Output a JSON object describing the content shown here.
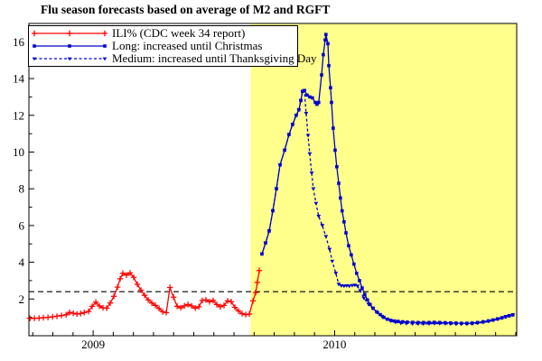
{
  "title": "Flu season forecasts based on average of M2 and RGFT",
  "legend": {
    "items": [
      {
        "label": "ILI% (CDC week 34 report)",
        "color": "#ff0000",
        "marker": "plus",
        "line": "solid"
      },
      {
        "label": "Long: increased until Christmas",
        "color": "#0000cc",
        "marker": "square",
        "line": "solid"
      },
      {
        "label": "Medium: increased until Thanksgiving Day",
        "color": "#0000cc",
        "marker": "triangle",
        "line": "dashed"
      }
    ]
  },
  "chart_data": {
    "type": "line",
    "title": "Flu season forecasts based on average of M2 and RGFT",
    "xlabel": "",
    "ylabel": "",
    "x_axis": {
      "range": [
        2008.734,
        2010.754
      ],
      "minor_tick_step_years": 0.08333,
      "year_labels": [
        {
          "value": 2009,
          "text": "2009"
        },
        {
          "value": 2010,
          "text": "2010"
        }
      ]
    },
    "y_axis": {
      "range": [
        0,
        17
      ],
      "major_ticks": [
        2,
        4,
        6,
        8,
        10,
        12,
        14,
        16
      ],
      "minor_ticks": [
        1,
        3,
        5,
        7,
        9,
        11,
        13,
        15,
        17
      ]
    },
    "grid": false,
    "legend_position": "top-left",
    "baseline": {
      "value": 2.4,
      "style": "dashed",
      "color": "#000000"
    },
    "forecast_region": {
      "x_start": 2009.652,
      "x_end": 2010.754,
      "color": "#ffff8c"
    },
    "series": [
      {
        "name": "ILI% (CDC week 34 report)",
        "color": "#ff0000",
        "marker": "plus",
        "line": "solid",
        "points": [
          [
            2008.738,
            0.95
          ],
          [
            2008.757,
            0.95
          ],
          [
            2008.776,
            0.96
          ],
          [
            2008.794,
            0.98
          ],
          [
            2008.813,
            1.0
          ],
          [
            2008.832,
            1.03
          ],
          [
            2008.85,
            1.06
          ],
          [
            2008.869,
            1.1
          ],
          [
            2008.888,
            1.14
          ],
          [
            2008.903,
            1.27
          ],
          [
            2008.918,
            1.22
          ],
          [
            2008.933,
            1.18
          ],
          [
            2008.948,
            1.21
          ],
          [
            2008.963,
            1.26
          ],
          [
            2008.981,
            1.32
          ],
          [
            2008.996,
            1.6
          ],
          [
            2009.011,
            1.83
          ],
          [
            2009.026,
            1.62
          ],
          [
            2009.041,
            1.52
          ],
          [
            2009.056,
            1.5
          ],
          [
            2009.071,
            1.78
          ],
          [
            2009.086,
            2.15
          ],
          [
            2009.101,
            2.65
          ],
          [
            2009.112,
            3.1
          ],
          [
            2009.123,
            3.4
          ],
          [
            2009.138,
            3.3
          ],
          [
            2009.153,
            3.42
          ],
          [
            2009.168,
            3.18
          ],
          [
            2009.183,
            2.8
          ],
          [
            2009.198,
            2.48
          ],
          [
            2009.213,
            2.2
          ],
          [
            2009.228,
            1.95
          ],
          [
            2009.243,
            1.78
          ],
          [
            2009.258,
            1.65
          ],
          [
            2009.273,
            1.48
          ],
          [
            2009.288,
            1.3
          ],
          [
            2009.303,
            1.26
          ],
          [
            2009.318,
            2.63
          ],
          [
            2009.333,
            2.1
          ],
          [
            2009.348,
            1.6
          ],
          [
            2009.363,
            1.52
          ],
          [
            2009.378,
            1.63
          ],
          [
            2009.393,
            1.7
          ],
          [
            2009.408,
            1.62
          ],
          [
            2009.423,
            1.5
          ],
          [
            2009.438,
            1.58
          ],
          [
            2009.452,
            1.92
          ],
          [
            2009.467,
            1.95
          ],
          [
            2009.482,
            1.85
          ],
          [
            2009.497,
            1.92
          ],
          [
            2009.512,
            1.7
          ],
          [
            2009.527,
            1.58
          ],
          [
            2009.542,
            1.65
          ],
          [
            2009.557,
            1.9
          ],
          [
            2009.572,
            1.85
          ],
          [
            2009.587,
            1.55
          ],
          [
            2009.602,
            1.35
          ],
          [
            2009.617,
            1.2
          ],
          [
            2009.632,
            1.15
          ],
          [
            2009.647,
            1.18
          ],
          [
            2009.662,
            1.9
          ],
          [
            2009.673,
            2.35
          ],
          [
            2009.68,
            2.9
          ],
          [
            2009.688,
            3.55
          ]
        ]
      },
      {
        "name": "Long: increased until Christmas",
        "color": "#0000cc",
        "marker": "square",
        "line": "solid",
        "points": [
          [
            2009.699,
            4.45
          ],
          [
            2009.714,
            5.05
          ],
          [
            2009.729,
            5.7
          ],
          [
            2009.744,
            6.8
          ],
          [
            2009.759,
            8.0
          ],
          [
            2009.774,
            9.3
          ],
          [
            2009.793,
            10.1
          ],
          [
            2009.811,
            10.95
          ],
          [
            2009.826,
            11.5
          ],
          [
            2009.841,
            12.0
          ],
          [
            2009.852,
            12.3
          ],
          [
            2009.86,
            12.8
          ],
          [
            2009.867,
            13.3
          ],
          [
            2009.875,
            13.35
          ],
          [
            2009.886,
            13.1
          ],
          [
            2009.897,
            13.0
          ],
          [
            2009.908,
            12.95
          ],
          [
            2009.92,
            12.7
          ],
          [
            2009.927,
            12.6
          ],
          [
            2009.934,
            12.7
          ],
          [
            2009.946,
            14.2
          ],
          [
            2009.953,
            15.3
          ],
          [
            2009.961,
            16.1
          ],
          [
            2009.964,
            16.4
          ],
          [
            2009.972,
            15.9
          ],
          [
            2009.976,
            14.7
          ],
          [
            2009.983,
            13.5
          ],
          [
            2009.987,
            12.7
          ],
          [
            2009.994,
            11.3
          ],
          [
            2010.002,
            10.1
          ],
          [
            2010.009,
            9.2
          ],
          [
            2010.017,
            8.3
          ],
          [
            2010.024,
            7.5
          ],
          [
            2010.031,
            6.8
          ],
          [
            2010.039,
            6.2
          ],
          [
            2010.047,
            5.6
          ],
          [
            2010.058,
            4.9
          ],
          [
            2010.069,
            4.4
          ],
          [
            2010.08,
            3.9
          ],
          [
            2010.091,
            3.4
          ],
          [
            2010.103,
            3.0
          ],
          [
            2010.114,
            2.6
          ],
          [
            2010.125,
            2.25
          ],
          [
            2010.136,
            1.95
          ],
          [
            2010.147,
            1.7
          ],
          [
            2010.159,
            1.5
          ],
          [
            2010.174,
            1.3
          ],
          [
            2010.189,
            1.15
          ],
          [
            2010.204,
            1.0
          ],
          [
            2010.219,
            0.9
          ],
          [
            2010.233,
            0.84
          ],
          [
            2010.248,
            0.8
          ],
          [
            2010.263,
            0.78
          ],
          [
            2010.282,
            0.76
          ],
          [
            2010.301,
            0.74
          ],
          [
            2010.323,
            0.73
          ],
          [
            2010.346,
            0.72
          ],
          [
            2010.368,
            0.72
          ],
          [
            2010.391,
            0.72
          ],
          [
            2010.413,
            0.73
          ],
          [
            2010.435,
            0.72
          ],
          [
            2010.458,
            0.71
          ],
          [
            2010.48,
            0.7
          ],
          [
            2010.503,
            0.69
          ],
          [
            2010.525,
            0.68
          ],
          [
            2010.548,
            0.68
          ],
          [
            2010.57,
            0.69
          ],
          [
            2010.592,
            0.72
          ],
          [
            2010.615,
            0.76
          ],
          [
            2010.637,
            0.81
          ],
          [
            2010.656,
            0.86
          ],
          [
            2010.675,
            0.92
          ],
          [
            2010.693,
            0.98
          ],
          [
            2010.708,
            1.04
          ],
          [
            2010.723,
            1.09
          ],
          [
            2010.738,
            1.14
          ]
        ]
      },
      {
        "name": "Medium: increased until Thanksgiving Day",
        "color": "#0000cc",
        "marker": "triangle",
        "line": "dashed",
        "points": [
          [
            2009.699,
            4.45
          ],
          [
            2009.714,
            5.05
          ],
          [
            2009.729,
            5.7
          ],
          [
            2009.744,
            6.8
          ],
          [
            2009.759,
            8.0
          ],
          [
            2009.774,
            9.3
          ],
          [
            2009.793,
            10.1
          ],
          [
            2009.811,
            10.95
          ],
          [
            2009.826,
            11.5
          ],
          [
            2009.841,
            12.0
          ],
          [
            2009.852,
            12.3
          ],
          [
            2009.86,
            12.8
          ],
          [
            2009.867,
            13.3
          ],
          [
            2009.875,
            13.35
          ],
          [
            2009.882,
            12.1
          ],
          [
            2009.89,
            10.9
          ],
          [
            2009.897,
            9.9
          ],
          [
            2009.905,
            8.85
          ],
          [
            2009.912,
            8.0
          ],
          [
            2009.923,
            7.2
          ],
          [
            2009.934,
            6.5
          ],
          [
            2009.949,
            6.0
          ],
          [
            2009.964,
            5.4
          ],
          [
            2009.979,
            4.7
          ],
          [
            2009.99,
            4.05
          ],
          [
            2010.005,
            3.4
          ],
          [
            2010.017,
            2.8
          ],
          [
            2010.028,
            2.72
          ],
          [
            2010.039,
            2.7
          ],
          [
            2010.05,
            2.72
          ],
          [
            2010.061,
            2.7
          ],
          [
            2010.073,
            2.73
          ],
          [
            2010.084,
            2.75
          ],
          [
            2010.095,
            2.7
          ],
          [
            2010.106,
            2.45
          ],
          [
            2010.121,
            2.05
          ],
          [
            2010.14,
            1.72
          ],
          [
            2010.159,
            1.48
          ],
          [
            2010.177,
            1.25
          ],
          [
            2010.196,
            1.05
          ],
          [
            2010.215,
            0.9
          ],
          [
            2010.233,
            0.8
          ],
          [
            2010.252,
            0.73
          ],
          [
            2010.274,
            0.68
          ],
          [
            2010.297,
            0.66
          ],
          [
            2010.323,
            0.65
          ],
          [
            2010.346,
            0.64
          ],
          [
            2010.368,
            0.64
          ],
          [
            2010.391,
            0.65
          ],
          [
            2010.413,
            0.66
          ],
          [
            2010.435,
            0.66
          ],
          [
            2010.458,
            0.65
          ],
          [
            2010.48,
            0.64
          ],
          [
            2010.503,
            0.63
          ],
          [
            2010.525,
            0.63
          ],
          [
            2010.548,
            0.63
          ],
          [
            2010.57,
            0.65
          ],
          [
            2010.592,
            0.68
          ],
          [
            2010.615,
            0.72
          ],
          [
            2010.637,
            0.77
          ],
          [
            2010.656,
            0.83
          ],
          [
            2010.675,
            0.89
          ],
          [
            2010.693,
            0.95
          ],
          [
            2010.708,
            1.01
          ],
          [
            2010.723,
            1.07
          ],
          [
            2010.738,
            1.13
          ]
        ]
      }
    ]
  }
}
